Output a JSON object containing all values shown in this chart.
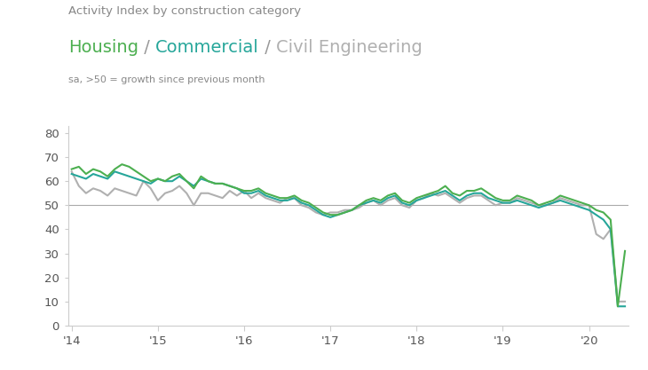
{
  "title_line1": "Activity Index by construction category",
  "subtitle_housing": "Housing",
  "subtitle_sep1": " / ",
  "subtitle_commercial": "Commercial",
  "subtitle_sep2": " / ",
  "subtitle_civil": "Civil Engineering",
  "annotation": "sa, >50 = growth since previous month",
  "housing_color": "#4caf50",
  "commercial_color": "#26a69a",
  "civil_color": "#b0b0b0",
  "sep_color": "#999999",
  "title_color": "#888888",
  "annotation_color": "#888888",
  "reference_line_y": 50,
  "reference_line_color": "#aaaaaa",
  "ylim": [
    0,
    83
  ],
  "yticks": [
    0,
    10,
    20,
    30,
    40,
    50,
    60,
    70,
    80
  ],
  "xtick_labels": [
    "'14",
    "'15",
    "'16",
    "'17",
    "'18",
    "'19",
    "'20"
  ],
  "tick_positions": [
    0,
    12,
    24,
    36,
    48,
    60,
    72
  ],
  "housing": [
    65.0,
    66.0,
    63.0,
    65.0,
    64.0,
    62.0,
    65.0,
    67.0,
    66.0,
    64.0,
    62.0,
    60.0,
    61.0,
    60.0,
    62.0,
    63.0,
    60.0,
    57.0,
    62.0,
    60.0,
    59.0,
    59.0,
    58.0,
    57.0,
    56.0,
    56.0,
    57.0,
    55.0,
    54.0,
    53.0,
    53.0,
    54.0,
    52.0,
    51.0,
    49.0,
    47.0,
    46.0,
    46.0,
    47.0,
    48.0,
    50.0,
    52.0,
    53.0,
    52.0,
    54.0,
    55.0,
    52.0,
    51.0,
    53.0,
    54.0,
    55.0,
    56.0,
    58.0,
    55.0,
    54.0,
    56.0,
    56.0,
    57.0,
    55.0,
    53.0,
    52.0,
    52.0,
    54.0,
    53.0,
    52.0,
    50.0,
    51.0,
    52.0,
    54.0,
    53.0,
    52.0,
    51.0,
    50.0,
    48.0,
    47.0,
    44.0,
    8.0,
    31.0
  ],
  "commercial": [
    63.0,
    62.0,
    61.0,
    63.0,
    62.0,
    61.0,
    64.0,
    63.0,
    62.0,
    61.0,
    60.0,
    59.0,
    61.0,
    60.0,
    60.0,
    62.0,
    60.0,
    58.0,
    61.0,
    60.0,
    59.0,
    59.0,
    58.0,
    57.0,
    55.0,
    55.0,
    56.0,
    54.0,
    53.0,
    52.0,
    52.0,
    53.0,
    51.0,
    50.0,
    48.0,
    46.0,
    45.0,
    46.0,
    47.0,
    48.0,
    50.0,
    51.0,
    52.0,
    51.0,
    53.0,
    54.0,
    51.0,
    50.0,
    52.0,
    53.0,
    54.0,
    55.0,
    56.0,
    54.0,
    52.0,
    54.0,
    55.0,
    55.0,
    53.0,
    52.0,
    51.0,
    51.0,
    52.0,
    51.0,
    50.0,
    49.0,
    50.0,
    51.0,
    52.0,
    51.0,
    50.0,
    49.0,
    48.0,
    46.0,
    44.0,
    40.0,
    8.0,
    8.0
  ],
  "civil": [
    64.0,
    58.0,
    55.0,
    57.0,
    56.0,
    54.0,
    57.0,
    56.0,
    55.0,
    54.0,
    60.0,
    57.0,
    52.0,
    55.0,
    56.0,
    58.0,
    55.0,
    50.0,
    55.0,
    55.0,
    54.0,
    53.0,
    56.0,
    54.0,
    56.0,
    53.0,
    55.0,
    53.0,
    52.0,
    51.0,
    53.0,
    53.0,
    50.0,
    49.0,
    47.0,
    46.0,
    47.0,
    47.0,
    48.0,
    48.0,
    49.0,
    51.0,
    52.0,
    50.0,
    52.0,
    53.0,
    50.0,
    49.0,
    52.0,
    53.0,
    55.0,
    54.0,
    55.0,
    53.0,
    51.0,
    53.0,
    54.0,
    54.0,
    52.0,
    50.0,
    51.0,
    51.0,
    53.0,
    52.0,
    51.0,
    50.0,
    50.0,
    51.0,
    53.0,
    52.0,
    51.0,
    50.0,
    50.0,
    38.0,
    36.0,
    40.0,
    10.0,
    10.0
  ]
}
